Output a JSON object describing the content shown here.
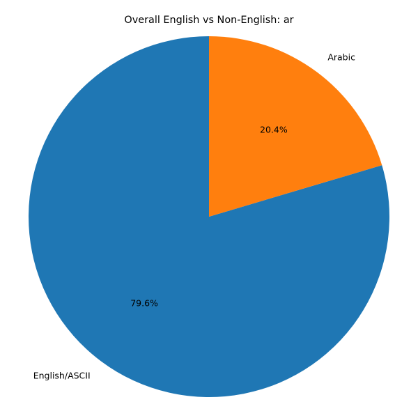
{
  "chart_data": {
    "type": "pie",
    "title": "Overall English vs Non-English: ar",
    "slices": [
      {
        "label": "English/ASCII",
        "value": 79.6,
        "pct_label": "79.6%",
        "color": "#1f77b4"
      },
      {
        "label": "Arabic",
        "value": 20.4,
        "pct_label": "20.4%",
        "color": "#ff7f0e"
      }
    ],
    "start_angle_deg": 90,
    "direction": "counterclockwise",
    "legend": "none"
  }
}
